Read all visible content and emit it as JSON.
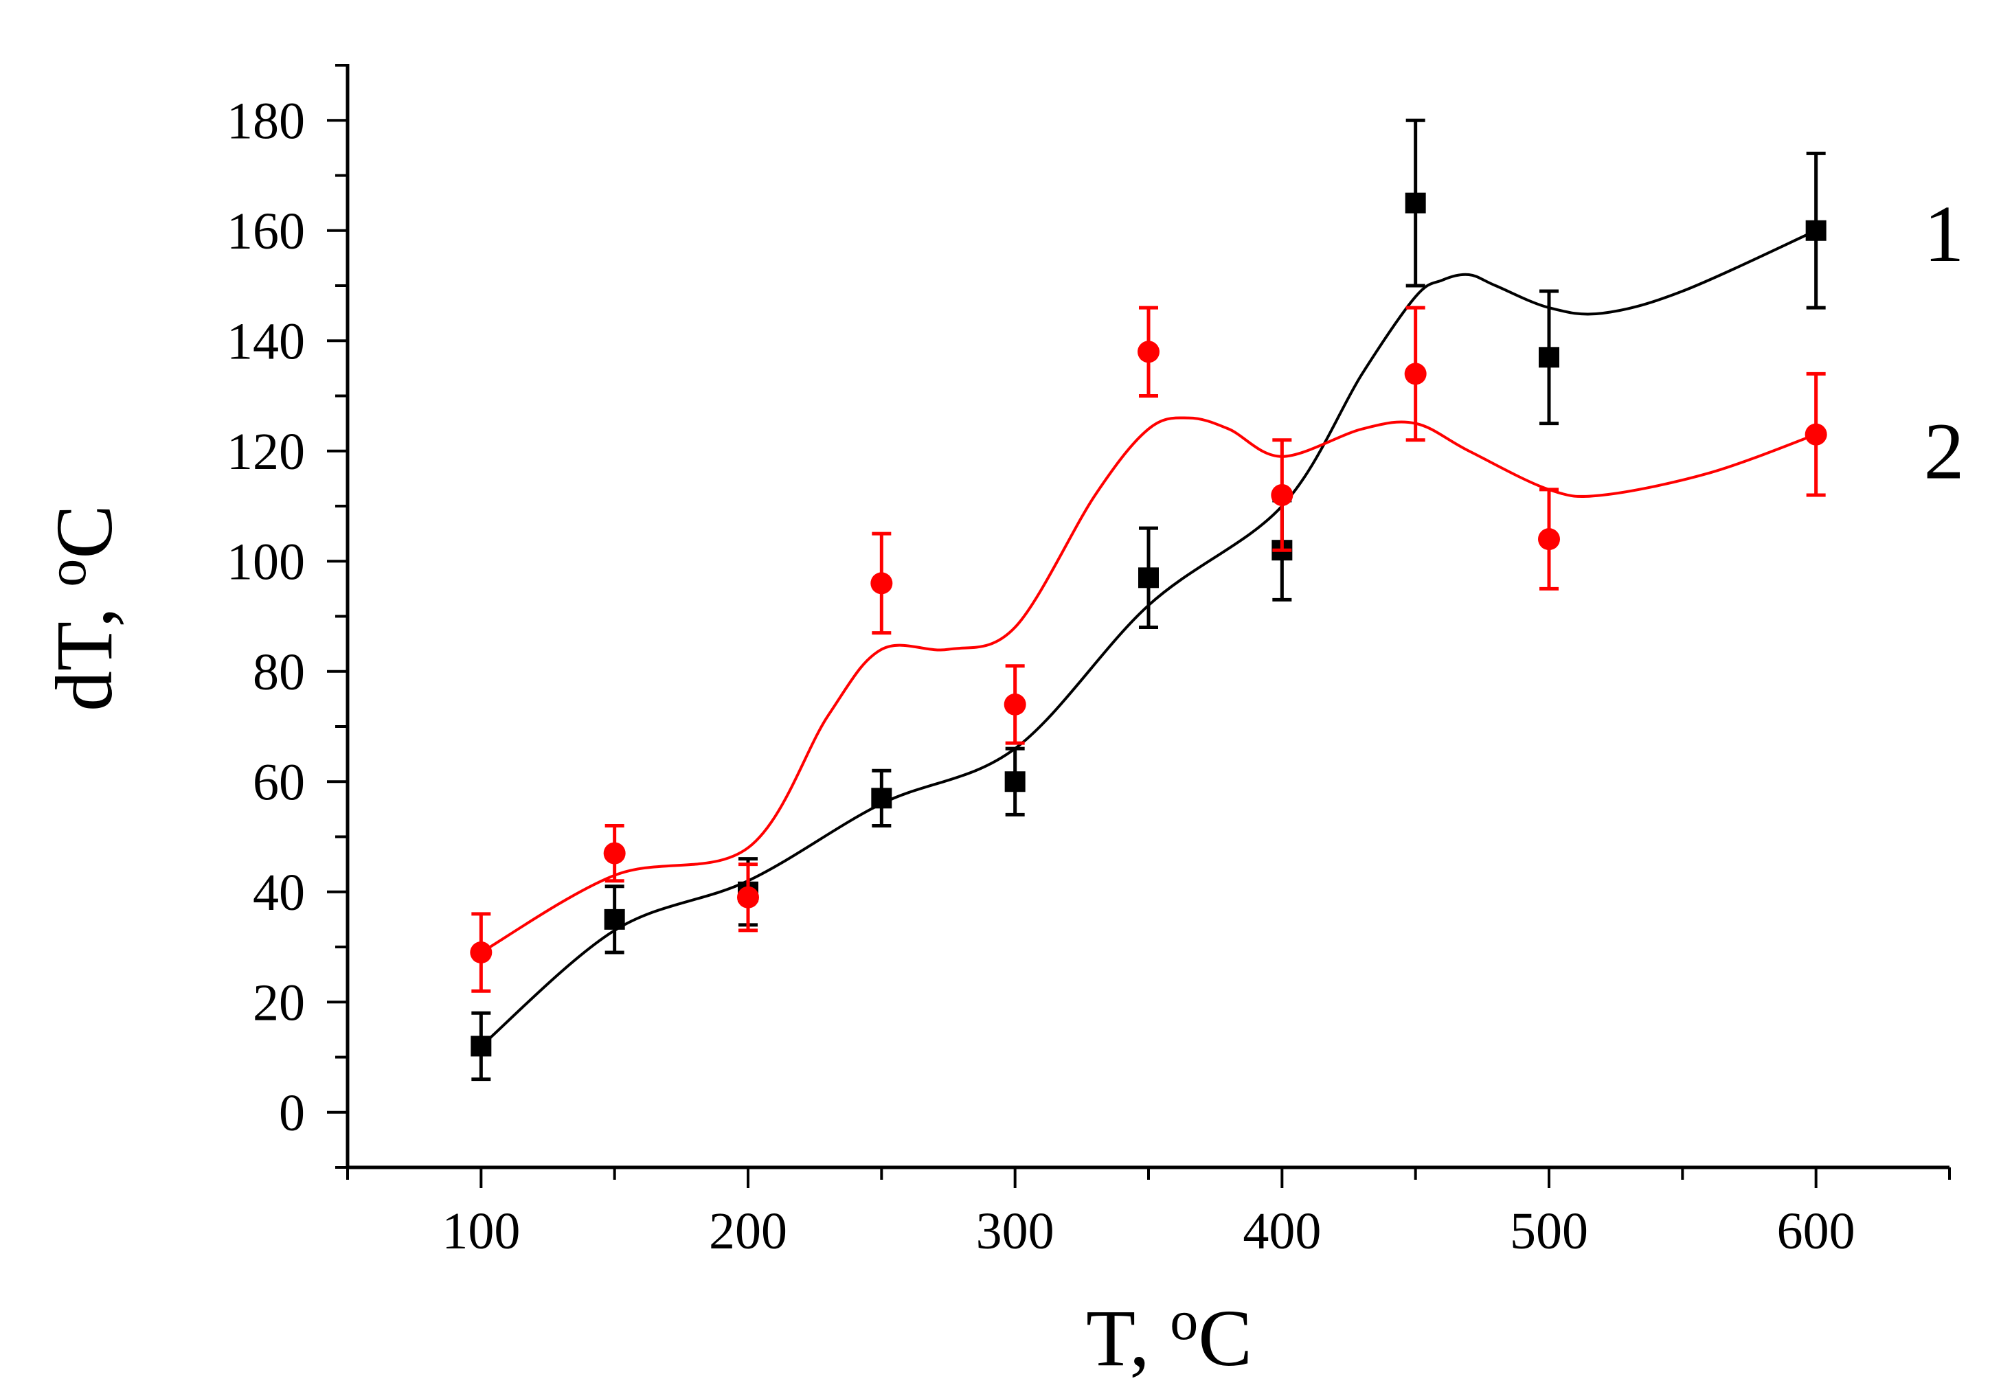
{
  "chart_data": {
    "type": "scatter",
    "title": "",
    "xlabel": "T, oC",
    "ylabel": "dT, oC",
    "xlim": [
      50,
      650
    ],
    "ylim": [
      -10,
      190
    ],
    "xticks": [
      100,
      200,
      300,
      400,
      500,
      600
    ],
    "xtick_labels": [
      "100",
      "200",
      "300",
      "400",
      "500",
      "600"
    ],
    "yticks": [
      0,
      20,
      40,
      60,
      80,
      100,
      120,
      140,
      160,
      180
    ],
    "ytick_labels": [
      "0",
      "20",
      "40",
      "60",
      "80",
      "100",
      "120",
      "140",
      "160",
      "180"
    ],
    "x_minor_step": 50,
    "y_minor_step": 10,
    "grid": false,
    "series": [
      {
        "name": "1",
        "label": "1",
        "color": "#000000",
        "marker": "square",
        "x": [
          100,
          150,
          200,
          250,
          300,
          350,
          400,
          450,
          500,
          600
        ],
        "y": [
          12,
          35,
          40,
          57,
          60,
          97,
          102,
          165,
          137,
          160
        ],
        "error": [
          6,
          6,
          6,
          5,
          6,
          9,
          9,
          15,
          12,
          14
        ],
        "fit_x": [
          100,
          150,
          200,
          250,
          300,
          350,
          400,
          430,
          450,
          460,
          470,
          480,
          500,
          520,
          550,
          600
        ],
        "fit_y": [
          12,
          33,
          42,
          56,
          66,
          92,
          110,
          134,
          148,
          151,
          152,
          150,
          146,
          145,
          149,
          160
        ]
      },
      {
        "name": "2",
        "label": "2",
        "color": "#ff0000",
        "marker": "circle",
        "x": [
          100,
          150,
          200,
          250,
          300,
          350,
          400,
          450,
          500,
          600
        ],
        "y": [
          29,
          47,
          39,
          96,
          74,
          138,
          112,
          134,
          104,
          123
        ],
        "error": [
          7,
          5,
          6,
          9,
          7,
          8,
          10,
          12,
          9,
          11
        ],
        "fit_x": [
          100,
          150,
          200,
          230,
          250,
          275,
          300,
          330,
          350,
          365,
          380,
          400,
          430,
          450,
          470,
          500,
          520,
          560,
          600
        ],
        "fit_y": [
          29,
          43,
          48,
          72,
          84,
          84,
          88,
          112,
          124,
          126,
          124,
          119,
          124,
          125,
          120,
          113,
          112,
          116,
          123
        ]
      }
    ]
  }
}
